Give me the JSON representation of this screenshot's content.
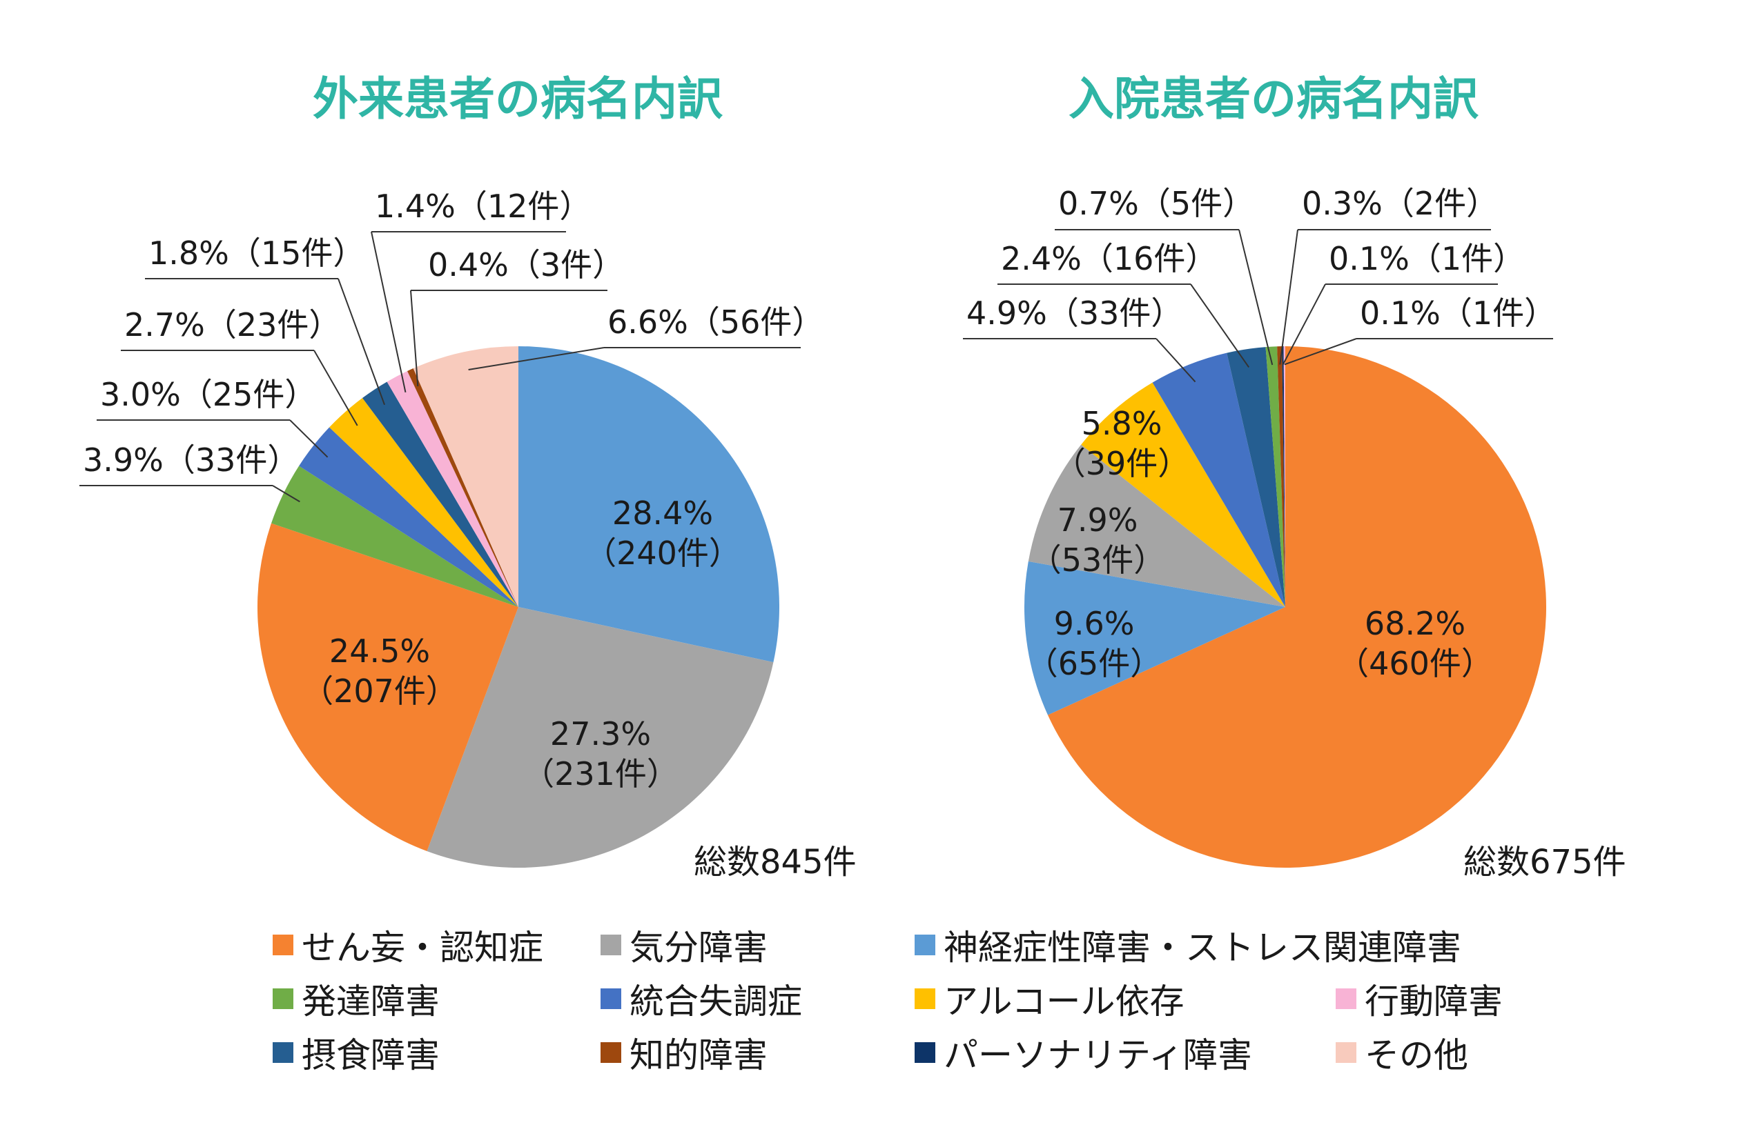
{
  "chart_data": [
    {
      "type": "pie",
      "title": "外来患者の病名内訳",
      "total_label": "総数845件",
      "slices": [
        {
          "category": "神経症性障害・ストレス関連障害",
          "value": 28.4,
          "count": 240,
          "pct_label": "28.4%",
          "count_label": "（240件）",
          "color": "#5b9bd5"
        },
        {
          "category": "気分障害",
          "value": 27.3,
          "count": 231,
          "pct_label": "27.3%",
          "count_label": "（231件）",
          "color": "#a5a5a5"
        },
        {
          "category": "せん妄・認知症",
          "value": 24.5,
          "count": 207,
          "pct_label": "24.5%",
          "count_label": "（207件）",
          "color": "#f58230"
        },
        {
          "category": "発達障害",
          "value": 3.9,
          "count": 33,
          "label": "3.9%（33件）",
          "color": "#70ad47"
        },
        {
          "category": "統合失調症",
          "value": 3.0,
          "count": 25,
          "label": "3.0%（25件）",
          "color": "#4472c4"
        },
        {
          "category": "アルコール依存",
          "value": 2.7,
          "count": 23,
          "label": "2.7%（23件）",
          "color": "#ffc000"
        },
        {
          "category": "摂食障害",
          "value": 1.8,
          "count": 15,
          "label": "1.8%（15件）",
          "color": "#255e91"
        },
        {
          "category": "行動障害",
          "value": 1.4,
          "count": 12,
          "label": "1.4%（12件）",
          "color": "#f8b3d5"
        },
        {
          "category": "知的障害",
          "value": 0.4,
          "count": 3,
          "label": "0.4%（3件）",
          "color": "#9e480e"
        },
        {
          "category": "その他",
          "value": 6.6,
          "count": 56,
          "label": "6.6%（56件）",
          "color": "#f8cbbd"
        }
      ]
    },
    {
      "type": "pie",
      "title": "入院患者の病名内訳",
      "total_label": "総数675件",
      "slices": [
        {
          "category": "せん妄・認知症",
          "value": 68.2,
          "count": 460,
          "pct_label": "68.2%",
          "count_label": "（460件）",
          "color": "#f58230"
        },
        {
          "category": "神経症性障害・ストレス関連障害",
          "value": 9.6,
          "count": 65,
          "pct_label": "9.6%",
          "count_label": "（65件）",
          "color": "#5b9bd5"
        },
        {
          "category": "気分障害",
          "value": 7.9,
          "count": 53,
          "pct_label": "7.9%",
          "count_label": "（53件）",
          "color": "#a5a5a5"
        },
        {
          "category": "アルコール依存",
          "value": 5.8,
          "count": 39,
          "pct_label": "5.8%",
          "count_label": "（39件）",
          "color": "#ffc000"
        },
        {
          "category": "統合失調症",
          "value": 4.9,
          "count": 33,
          "label": "4.9%（33件）",
          "color": "#4472c4"
        },
        {
          "category": "摂食障害",
          "value": 2.4,
          "count": 16,
          "label": "2.4%（16件）",
          "color": "#255e91"
        },
        {
          "category": "発達障害",
          "value": 0.7,
          "count": 5,
          "label": "0.7%（5件）",
          "color": "#70ad47"
        },
        {
          "category": "知的障害",
          "value": 0.3,
          "count": 2,
          "label": "0.3%（2件）",
          "color": "#9e480e"
        },
        {
          "category": "パーソナリティ障害",
          "value": 0.1,
          "count": 1,
          "label": "0.1%（1件）",
          "color": "#0d3468"
        },
        {
          "category": "行動障害",
          "value": 0.1,
          "count": 1,
          "label": "0.1%（1件）",
          "color": "#f8b3d5"
        }
      ]
    }
  ],
  "legend": {
    "placement": "bottom",
    "items": [
      {
        "label": "せん妄・認知症",
        "color": "#f58230"
      },
      {
        "label": "気分障害",
        "color": "#a5a5a5"
      },
      {
        "label": "神経症性障害・ストレス関連障害",
        "color": "#5b9bd5"
      },
      {
        "label": "発達障害",
        "color": "#70ad47"
      },
      {
        "label": "統合失調症",
        "color": "#4472c4"
      },
      {
        "label": "アルコール依存",
        "color": "#ffc000"
      },
      {
        "label": "行動障害",
        "color": "#f8b3d5"
      },
      {
        "label": "摂食障害",
        "color": "#255e91"
      },
      {
        "label": "知的障害",
        "color": "#9e480e"
      },
      {
        "label": "パーソナリティ障害",
        "color": "#0d3468"
      },
      {
        "label": "その他",
        "color": "#f8cbbd"
      }
    ]
  }
}
